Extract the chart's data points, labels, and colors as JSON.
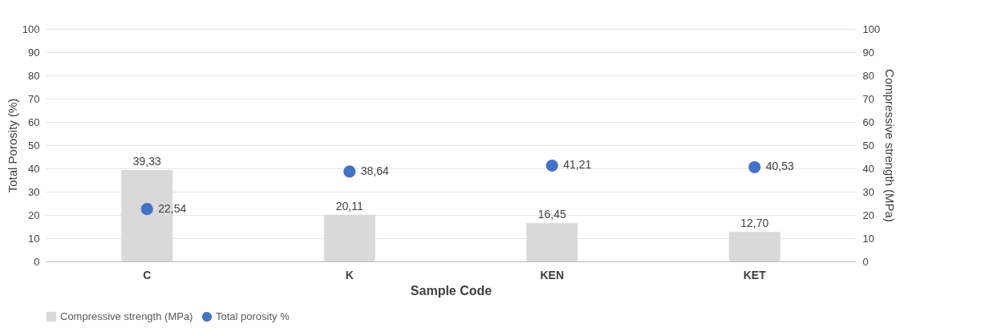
{
  "chart_data": {
    "type": "bar",
    "categories": [
      "C",
      "K",
      "KEN",
      "KET"
    ],
    "xlabel": "Sample Code",
    "ylabel": "Total Porosity (%)",
    "y2label": "Compressive strength (MPa)",
    "series": [
      {
        "name": "Compressive strength (MPa)",
        "type": "bar",
        "axis": "y2",
        "color": "#d9d9d9",
        "values": [
          39.33,
          20.11,
          16.45,
          12.7
        ],
        "value_labels": [
          "39,33",
          "20,11",
          "16,45",
          "12,70"
        ]
      },
      {
        "name": "Total porosity %",
        "type": "scatter",
        "color": "#4472c4",
        "values": [
          22.54,
          38.64,
          41.21,
          40.53
        ],
        "value_labels": [
          "22,54",
          "38,64",
          "41,21",
          "40,53"
        ]
      }
    ],
    "ylim": [
      0,
      100
    ],
    "yticks": [
      0,
      10,
      20,
      30,
      40,
      50,
      60,
      70,
      80,
      90,
      100
    ],
    "y2lim": [
      0,
      100
    ],
    "y2ticks": [
      0,
      10,
      20,
      30,
      40,
      50,
      60,
      70,
      80,
      90,
      100
    ],
    "grid": "y",
    "legend": "bottom",
    "marker": "circle"
  }
}
